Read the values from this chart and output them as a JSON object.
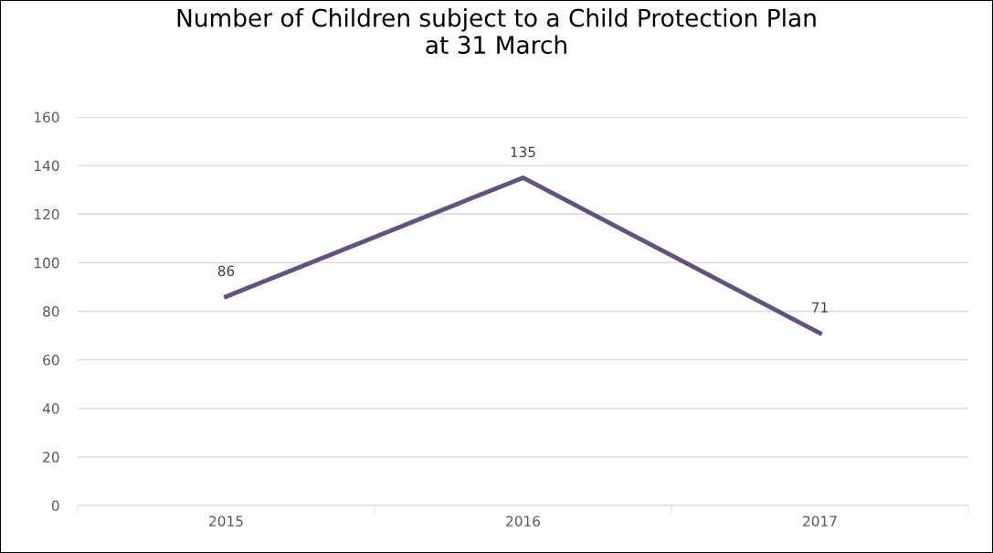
{
  "chart_data": {
    "type": "line",
    "title": "Number of Children subject to a Child Protection Plan\nat 31 March",
    "categories": [
      "2015",
      "2016",
      "2017"
    ],
    "series": [
      {
        "color": "#66507f",
        "values": [
          86,
          135,
          71
        ]
      }
    ],
    "ylim": [
      0,
      160
    ],
    "yticks": [
      0,
      20,
      40,
      60,
      80,
      100,
      120,
      140,
      160
    ],
    "grid": "y",
    "data_labels": true,
    "marker": "none",
    "line_style": "solid",
    "legend": false
  }
}
